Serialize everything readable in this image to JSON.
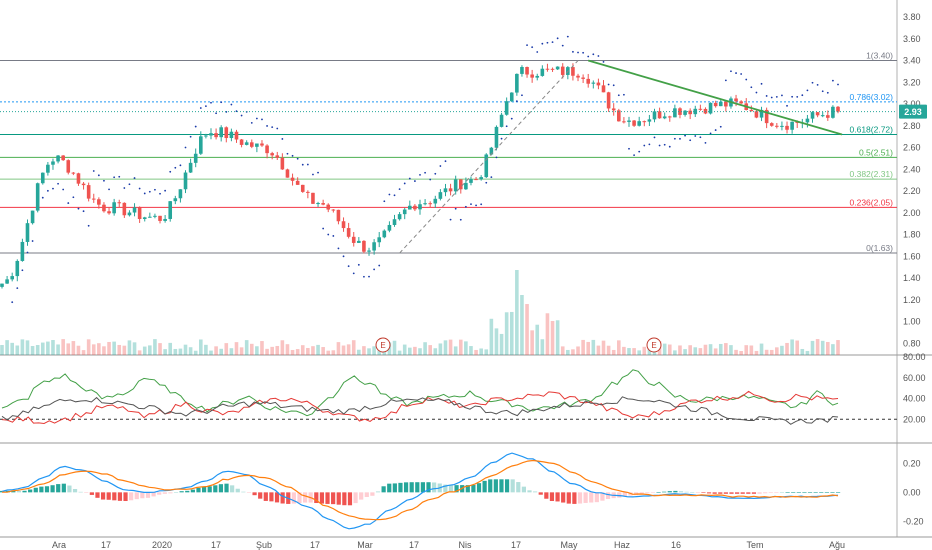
{
  "chart_data": [
    {
      "type": "candlestick",
      "panel": "price",
      "price_axis_ticks": [
        "3.80",
        "3.60",
        "3.40",
        "3.20",
        "3.00",
        "2.80",
        "2.60",
        "2.40",
        "2.20",
        "2.00",
        "1.80",
        "1.60",
        "1.40",
        "1.20",
        "1.00",
        "0.80"
      ],
      "ylim": [
        0.72,
        3.92
      ],
      "last_price": "2.93",
      "fibonacci_levels": [
        {
          "label": "1(3.40)",
          "value": 3.4,
          "color": "#787b86"
        },
        {
          "label": "0.786(3.02)",
          "value": 3.02,
          "color": "#2196f3"
        },
        {
          "label": "0.618(2.72)",
          "value": 2.72,
          "color": "#089981"
        },
        {
          "label": "0.5(2.51)",
          "value": 2.51,
          "color": "#4caf50"
        },
        {
          "label": "0.382(2.31)",
          "value": 2.31,
          "color": "#81c784"
        },
        {
          "label": "0.236(2.05)",
          "value": 2.05,
          "color": "#f23645"
        },
        {
          "label": "0(1.63)",
          "value": 1.63,
          "color": "#787b86"
        }
      ],
      "key_points": [
        {
          "period": "Ara start",
          "close": 1.35
        },
        {
          "period": "Ara 17",
          "close": 2.5
        },
        {
          "period": "2020 (Oca)",
          "close": 2.05
        },
        {
          "period": "Oca 17",
          "close": 1.95
        },
        {
          "period": "Şub",
          "close": 2.75
        },
        {
          "period": "Şub 17",
          "close": 2.6
        },
        {
          "period": "Mar",
          "close": 2.1
        },
        {
          "period": "Mar 17",
          "close": 1.68
        },
        {
          "period": "Nis",
          "close": 2.1
        },
        {
          "period": "Nis 17",
          "close": 2.3
        },
        {
          "period": "May",
          "close": 3.3
        },
        {
          "period": "May 17",
          "close": 3.3
        },
        {
          "period": "Haz",
          "close": 2.85
        },
        {
          "period": "Haz 16",
          "close": 2.95
        },
        {
          "period": "Tem",
          "close": 3.0
        },
        {
          "period": "Tem 17",
          "close": 2.82
        },
        {
          "period": "Ağu",
          "close": 2.93
        }
      ],
      "volume_markers": [
        "E",
        "E"
      ],
      "colors": {
        "up": "#26a69a",
        "down": "#ef5350"
      }
    },
    {
      "type": "line",
      "panel": "dmi",
      "axis_ticks": [
        "80.00",
        "60.00",
        "40.00",
        "20.00"
      ],
      "ylim": [
        0,
        80
      ],
      "reference_level": 20,
      "series": [
        {
          "color": "#43a047",
          "values": [
            30,
            38,
            55,
            62,
            50,
            40,
            45,
            60,
            50,
            38,
            30,
            35,
            42,
            32,
            28,
            25,
            40,
            60,
            55,
            40,
            35,
            40,
            42,
            45,
            38,
            35,
            30,
            32,
            35,
            40,
            55,
            65,
            55,
            42,
            38,
            40,
            42,
            40,
            35,
            32,
            45,
            35
          ]
        },
        {
          "color": "#e53935",
          "values": [
            18,
            20,
            18,
            20,
            25,
            32,
            30,
            22,
            28,
            35,
            28,
            25,
            30,
            38,
            40,
            35,
            28,
            22,
            20,
            25,
            35,
            40,
            35,
            32,
            38,
            40,
            42,
            45,
            40,
            35,
            28,
            22,
            25,
            32,
            38,
            40,
            42,
            45,
            38,
            42,
            40,
            38
          ]
        },
        {
          "color": "#555555",
          "values": [
            20,
            25,
            32,
            38,
            40,
            38,
            35,
            32,
            28,
            25,
            28,
            32,
            35,
            35,
            32,
            30,
            28,
            28,
            32,
            36,
            38,
            38,
            36,
            32,
            28,
            26,
            28,
            32,
            34,
            36,
            38,
            40,
            38,
            34,
            30,
            26,
            22,
            20,
            18,
            18,
            19,
            20
          ]
        }
      ]
    },
    {
      "type": "line",
      "panel": "macd",
      "axis_ticks": [
        "0.20",
        "0.00",
        "-0.20"
      ],
      "ylim": [
        -0.26,
        0.32
      ],
      "series": [
        {
          "color": "#2196f3",
          "values": [
            0.01,
            0.03,
            0.1,
            0.18,
            0.15,
            0.08,
            0.02,
            0.0,
            0.01,
            0.03,
            0.08,
            0.15,
            0.12,
            0.04,
            -0.04,
            -0.1,
            -0.18,
            -0.25,
            -0.22,
            -0.12,
            -0.05,
            0.02,
            0.05,
            0.1,
            0.2,
            0.27,
            0.23,
            0.14,
            0.06,
            0.0,
            -0.02,
            -0.03,
            -0.02,
            -0.01,
            -0.02,
            -0.03,
            -0.04,
            -0.04,
            -0.03,
            -0.03,
            -0.03,
            -0.02
          ]
        },
        {
          "color": "#ff7f0e",
          "values": [
            0.0,
            0.02,
            0.06,
            0.12,
            0.15,
            0.13,
            0.08,
            0.04,
            0.02,
            0.02,
            0.04,
            0.09,
            0.12,
            0.1,
            0.04,
            -0.03,
            -0.1,
            -0.16,
            -0.19,
            -0.18,
            -0.12,
            -0.05,
            0.0,
            0.05,
            0.11,
            0.18,
            0.22,
            0.2,
            0.14,
            0.07,
            0.02,
            -0.01,
            -0.02,
            -0.02,
            -0.02,
            -0.02,
            -0.03,
            -0.03,
            -0.03,
            -0.03,
            -0.03,
            -0.02
          ]
        }
      ],
      "histogram_colors": {
        "pos_strong": "#26a69a",
        "pos_weak": "#b2dfdb",
        "neg_strong": "#ef5350",
        "neg_weak": "#ffcdd2"
      }
    }
  ],
  "x_axis_labels": [
    "Ara",
    "17",
    "2020",
    "17",
    "Şub",
    "17",
    "Mar",
    "17",
    "Nis",
    "17",
    "May",
    "Haz",
    "16",
    "Tem",
    "Ağu"
  ]
}
